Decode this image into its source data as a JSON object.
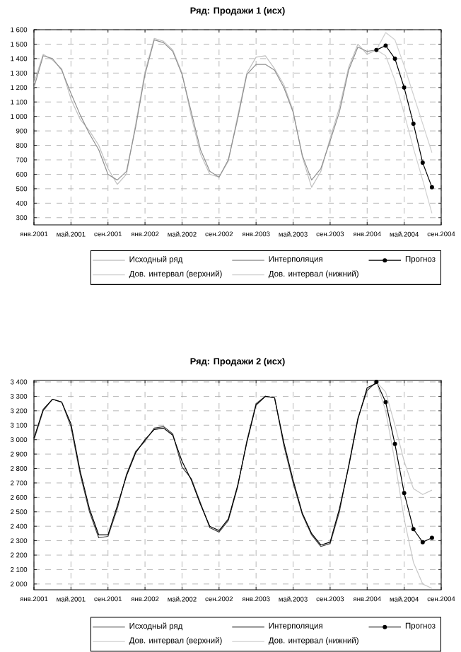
{
  "chart_data": [
    {
      "type": "line",
      "title": "Ряд: Продажи 1 (исх)",
      "x": [
        "2001-01",
        "2001-02",
        "2001-03",
        "2001-04",
        "2001-05",
        "2001-06",
        "2001-07",
        "2001-08",
        "2001-09",
        "2001-10",
        "2001-11",
        "2001-12",
        "2002-01",
        "2002-02",
        "2002-03",
        "2002-04",
        "2002-05",
        "2002-06",
        "2002-07",
        "2002-08",
        "2002-09",
        "2002-10",
        "2002-11",
        "2002-12",
        "2003-01",
        "2003-02",
        "2003-03",
        "2003-04",
        "2003-05",
        "2003-06",
        "2003-07",
        "2003-08",
        "2003-09",
        "2003-10",
        "2003-11",
        "2003-12",
        "2004-01",
        "2004-02"
      ],
      "series": [
        {
          "name": "Исходный ряд",
          "color": "#c0c0c0",
          "values": [
            1230,
            1430,
            1390,
            1330,
            1120,
            980,
            900,
            800,
            640,
            530,
            600,
            950,
            1310,
            1540,
            1520,
            1460,
            1300,
            1000,
            740,
            600,
            580,
            690,
            1000,
            1300,
            1410,
            1420,
            1330,
            1220,
            1040,
            720,
            510,
            620,
            850,
            1060,
            1340,
            1500,
            1430,
            1460
          ]
        },
        {
          "name": "Интерполяция",
          "color": "#909090",
          "values": [
            1200,
            1420,
            1400,
            1320,
            1160,
            1010,
            880,
            770,
            600,
            560,
            620,
            930,
            1290,
            1530,
            1510,
            1450,
            1290,
            1030,
            770,
            620,
            580,
            700,
            980,
            1290,
            1360,
            1360,
            1320,
            1200,
            1030,
            730,
            560,
            640,
            830,
            1030,
            1320,
            1480,
            1450,
            1460
          ]
        },
        {
          "name": "Прогноз",
          "color": "#000000",
          "marker": "circle",
          "x": [
            "2004-02",
            "2004-03",
            "2004-04",
            "2004-05",
            "2004-06",
            "2004-07",
            "2004-08"
          ],
          "values": [
            1460,
            1490,
            1400,
            1200,
            950,
            680,
            510
          ]
        },
        {
          "name": "Дов. интервал (верхний)",
          "color": "#d0d0d0",
          "x": [
            "2004-02",
            "2004-03",
            "2004-04",
            "2004-05",
            "2004-06",
            "2004-07",
            "2004-08"
          ],
          "values": [
            1460,
            1580,
            1530,
            1350,
            1150,
            950,
            750
          ]
        },
        {
          "name": "Дов. интервал (нижний)",
          "color": "#d0d0d0",
          "x": [
            "2004-02",
            "2004-03",
            "2004-04",
            "2004-05",
            "2004-06",
            "2004-07",
            "2004-08"
          ],
          "values": [
            1460,
            1420,
            1250,
            1020,
            780,
            560,
            330
          ]
        }
      ],
      "xlim": [
        "2001-01",
        "2004-09"
      ],
      "xticks": [
        {
          "value": "2001-01",
          "label": "янв.2001"
        },
        {
          "value": "2001-05",
          "label": "май.2001"
        },
        {
          "value": "2001-09",
          "label": "сен.2001"
        },
        {
          "value": "2002-01",
          "label": "янв.2002"
        },
        {
          "value": "2002-05",
          "label": "май.2002"
        },
        {
          "value": "2002-09",
          "label": "сен.2002"
        },
        {
          "value": "2003-01",
          "label": "янв.2003"
        },
        {
          "value": "2003-05",
          "label": "май.2003"
        },
        {
          "value": "2003-09",
          "label": "сен.2003"
        },
        {
          "value": "2004-01",
          "label": "янв.2004"
        },
        {
          "value": "2004-05",
          "label": "май.2004"
        },
        {
          "value": "2004-09",
          "label": "сен.2004"
        }
      ],
      "ylim": [
        250,
        1600
      ],
      "yticks": [
        300,
        400,
        500,
        600,
        700,
        800,
        900,
        {
          "value": 1000,
          "label": "1 000"
        },
        {
          "value": 1100,
          "label": "1 100"
        },
        {
          "value": 1200,
          "label": "1 200"
        },
        {
          "value": 1300,
          "label": "1 300"
        },
        {
          "value": 1400,
          "label": "1 400"
        },
        {
          "value": 1500,
          "label": "1 500"
        },
        {
          "value": 1600,
          "label": "1 600"
        }
      ],
      "grid": true,
      "legend": "bottom right",
      "line_style": "solid"
    },
    {
      "type": "line",
      "title": "Ряд: Продажи 2 (исх)",
      "x": [
        "2001-01",
        "2001-02",
        "2001-03",
        "2001-04",
        "2001-05",
        "2001-06",
        "2001-07",
        "2001-08",
        "2001-09",
        "2001-10",
        "2001-11",
        "2001-12",
        "2002-01",
        "2002-02",
        "2002-03",
        "2002-04",
        "2002-05",
        "2002-06",
        "2002-07",
        "2002-08",
        "2002-09",
        "2002-10",
        "2002-11",
        "2002-12",
        "2003-01",
        "2003-02",
        "2003-03",
        "2003-04",
        "2003-05",
        "2003-06",
        "2003-07",
        "2003-08",
        "2003-09",
        "2003-10",
        "2003-11",
        "2003-12",
        "2004-01",
        "2004-02"
      ],
      "series": [
        {
          "name": "Исходный ряд",
          "color": "#404040",
          "values": [
            3000,
            3200,
            3280,
            3260,
            3090,
            2760,
            2500,
            2320,
            2330,
            2520,
            2760,
            2920,
            2990,
            3080,
            3090,
            3040,
            2810,
            2730,
            2560,
            2390,
            2360,
            2440,
            2670,
            2990,
            3250,
            3300,
            3290,
            2960,
            2700,
            2480,
            2340,
            2260,
            2280,
            2500,
            2820,
            3150,
            3340,
            3400
          ]
        },
        {
          "name": "Интерполяция",
          "color": "#000000",
          "values": [
            3010,
            3210,
            3280,
            3260,
            3110,
            2780,
            2520,
            2340,
            2340,
            2540,
            2750,
            2910,
            3000,
            3070,
            3080,
            3030,
            2850,
            2720,
            2550,
            2400,
            2370,
            2450,
            2680,
            2980,
            3240,
            3300,
            3290,
            2980,
            2720,
            2490,
            2350,
            2270,
            2290,
            2520,
            2810,
            3140,
            3360,
            3390
          ]
        },
        {
          "name": "Прогноз",
          "color": "#000000",
          "marker": "circle",
          "x": [
            "2004-02",
            "2004-03",
            "2004-04",
            "2004-05",
            "2004-06",
            "2004-07",
            "2004-08"
          ],
          "values": [
            3400,
            3260,
            2970,
            2630,
            2380,
            2290,
            2320
          ]
        },
        {
          "name": "Дов. интервал (верхний)",
          "color": "#c8c8c8",
          "x": [
            "2004-02",
            "2004-03",
            "2004-04",
            "2004-05",
            "2004-06",
            "2004-07",
            "2004-08"
          ],
          "values": [
            3400,
            3330,
            3100,
            2850,
            2660,
            2620,
            2650
          ]
        },
        {
          "name": "Дов. интервал (нижний)",
          "color": "#c8c8c8",
          "x": [
            "2004-02",
            "2004-03",
            "2004-04",
            "2004-05",
            "2004-06",
            "2004-07",
            "2004-08"
          ],
          "values": [
            3400,
            3200,
            2850,
            2450,
            2150,
            2000,
            1970
          ]
        }
      ],
      "xlim": [
        "2001-01",
        "2004-09"
      ],
      "xticks": [
        {
          "value": "2001-01",
          "label": "янв.2001"
        },
        {
          "value": "2001-05",
          "label": "май.2001"
        },
        {
          "value": "2001-09",
          "label": "сен.2001"
        },
        {
          "value": "2002-01",
          "label": "янв.2002"
        },
        {
          "value": "2002-05",
          "label": "май.2002"
        },
        {
          "value": "2002-09",
          "label": "сен.2002"
        },
        {
          "value": "2003-01",
          "label": "янв.2003"
        },
        {
          "value": "2003-05",
          "label": "май.2003"
        },
        {
          "value": "2003-09",
          "label": "сен.2003"
        },
        {
          "value": "2004-01",
          "label": "янв.2004"
        },
        {
          "value": "2004-05",
          "label": "май.2004"
        },
        {
          "value": "2004-09",
          "label": "сен.2004"
        }
      ],
      "ylim": [
        1960,
        3410
      ],
      "yticks": [
        {
          "value": 2000,
          "label": "2 000"
        },
        {
          "value": 2100,
          "label": "2 100"
        },
        {
          "value": 2200,
          "label": "2 200"
        },
        {
          "value": 2300,
          "label": "2 300"
        },
        {
          "value": 2400,
          "label": "2 400"
        },
        {
          "value": 2500,
          "label": "2 500"
        },
        {
          "value": 2600,
          "label": "2 600"
        },
        {
          "value": 2700,
          "label": "2 700"
        },
        {
          "value": 2800,
          "label": "2 800"
        },
        {
          "value": 2900,
          "label": "2 900"
        },
        {
          "value": 3000,
          "label": "3 000"
        },
        {
          "value": 3100,
          "label": "3 100"
        },
        {
          "value": 3200,
          "label": "3 200"
        },
        {
          "value": 3300,
          "label": "3 300"
        },
        {
          "value": 3400,
          "label": "3 400"
        }
      ],
      "grid": true,
      "legend": "bottom right",
      "line_style": "solid"
    }
  ]
}
